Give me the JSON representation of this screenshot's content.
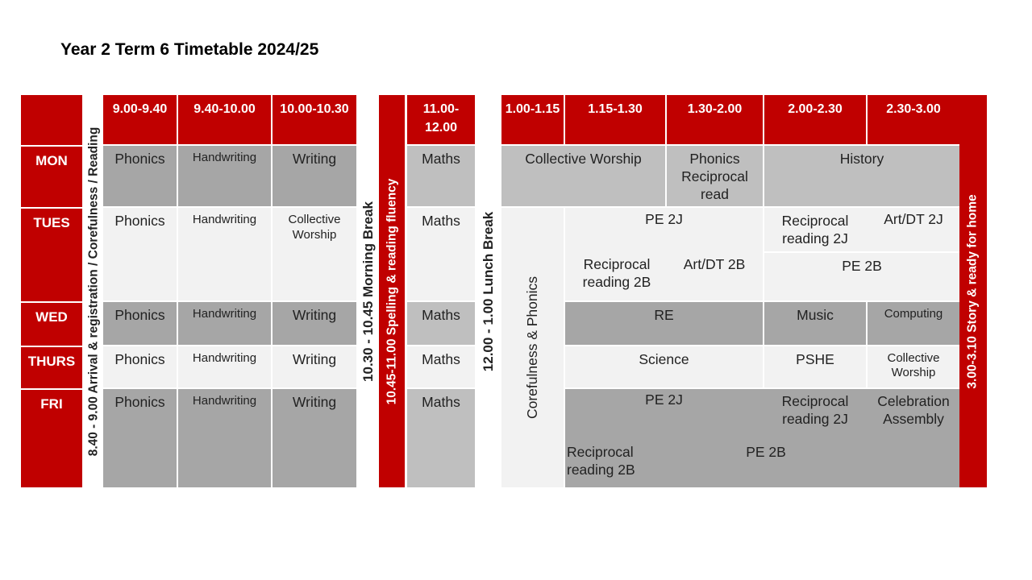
{
  "title": "Year 2 Term 6 Timetable 2024/25",
  "colors": {
    "red": "#c00000",
    "dark_grey": "#a6a6a6",
    "mid_grey": "#bfbfbf",
    "light_grey": "#f2f2f2"
  },
  "headers": {
    "t1": "9.00-9.40",
    "t2": "9.40-10.00",
    "t3": "10.00-10.30",
    "t4": "11.00-12.00",
    "t5": "1.00-1.15",
    "t6": "1.15-1.30",
    "t7": "1.30-2.00",
    "t8": "2.00-2.30",
    "t9": "2.30-3.00"
  },
  "days": {
    "mon": "MON",
    "tues": "TUES",
    "wed": "WED",
    "thurs": "THURS",
    "fri": "FRI"
  },
  "vertical": {
    "arrival": "8.40 - 9.00  Arrival & registration / Corefulness / Reading",
    "morning_break": "10.30 - 10.45 Morning Break",
    "spelling": "10.45-11.00 Spelling & reading fluency",
    "lunch": "12.00 - 1.00 Lunch Break",
    "corefulness": "Corefulness & Phonics",
    "story": "3.00-3.10 Story & ready for home"
  },
  "morning": {
    "phonics": "Phonics",
    "handwriting": "Handwriting",
    "writing": "Writing",
    "collective_worship": "Collective Worship",
    "maths": "Maths"
  },
  "afternoon": {
    "mon_collective": "Collective Worship",
    "mon_phonics": "Phonics Reciprocal read",
    "mon_history": "History",
    "tues_pe2j": "PE 2J",
    "tues_recip2j": "Reciprocal reading 2J",
    "tues_art2j": "Art/DT 2J",
    "tues_recip2b": "Reciprocal reading 2B",
    "tues_art2b": "Art/DT 2B",
    "tues_pe2b": "PE 2B",
    "wed_re": "RE",
    "wed_music": "Music",
    "wed_computing": "Computing",
    "thurs_science": "Science",
    "thurs_pshe": "PSHE",
    "thurs_collective": "Collective Worship",
    "fri_pe2j": "PE 2J",
    "fri_recip2j": "Reciprocal reading 2J",
    "fri_celebration": "Celebration Assembly",
    "fri_recip2b": "Reciprocal reading 2B",
    "fri_pe2b": "PE 2B"
  }
}
